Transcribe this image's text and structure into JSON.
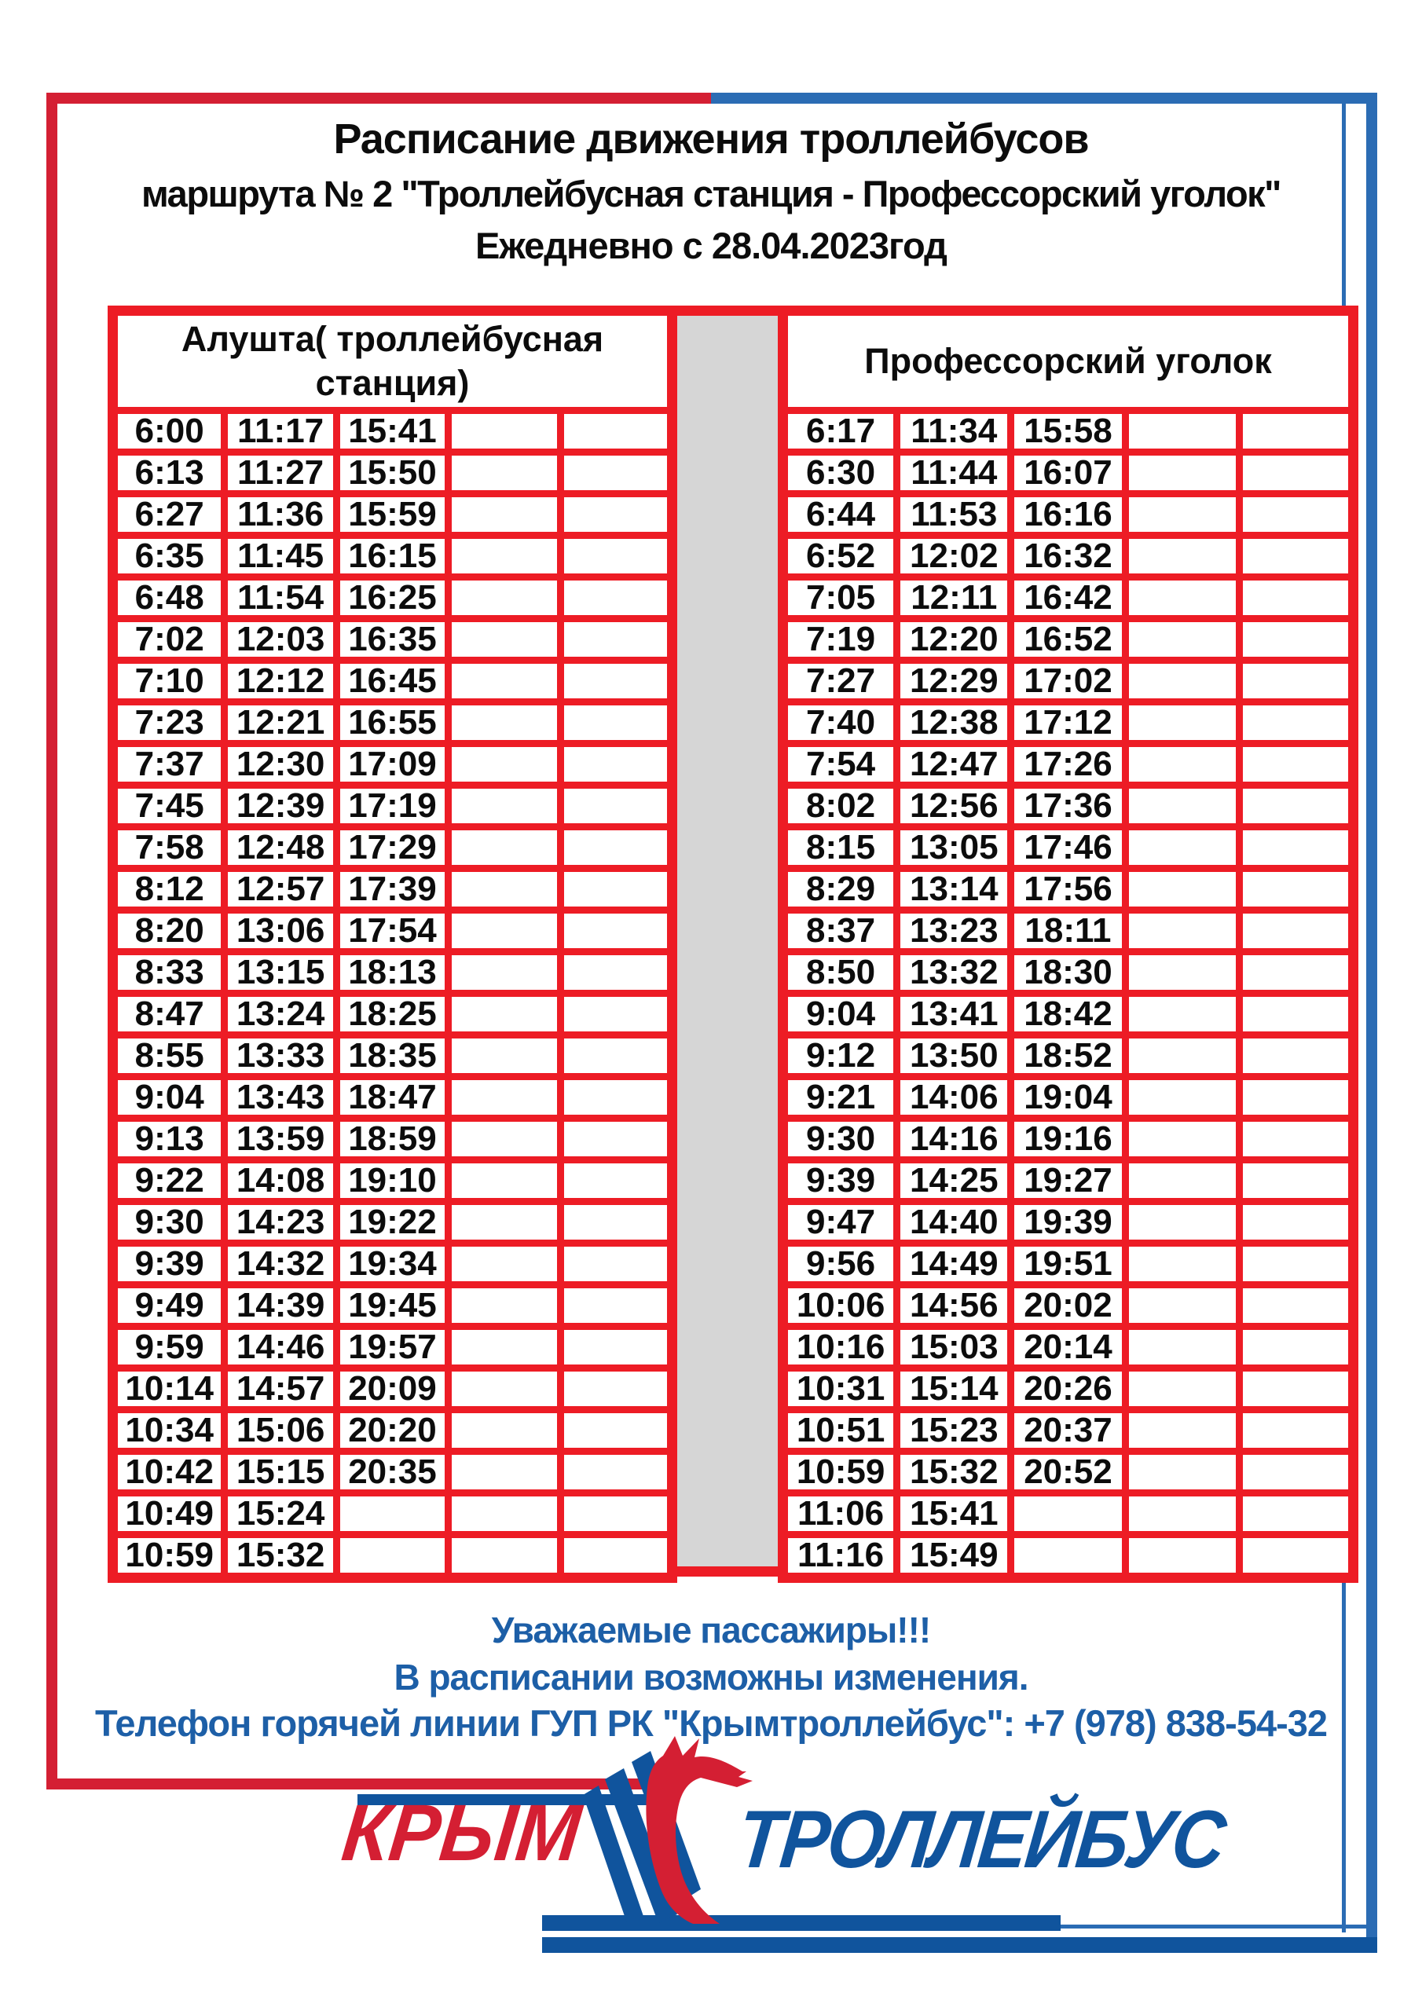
{
  "title": {
    "line1": "Расписание движения троллейбусов",
    "line2": "маршрута № 2 \"Троллейбусная станция - Профессорский уголок\"",
    "line3": "Ежедневно с 28.04.2023год"
  },
  "left_table": {
    "header_lines": [
      "Алушта( троллейбусная",
      "станция)"
    ],
    "columns": 5,
    "rows": [
      [
        "6:00",
        "11:17",
        "15:41",
        "",
        ""
      ],
      [
        "6:13",
        "11:27",
        "15:50",
        "",
        ""
      ],
      [
        "6:27",
        "11:36",
        "15:59",
        "",
        ""
      ],
      [
        "6:35",
        "11:45",
        "16:15",
        "",
        ""
      ],
      [
        "6:48",
        "11:54",
        "16:25",
        "",
        ""
      ],
      [
        "7:02",
        "12:03",
        "16:35",
        "",
        ""
      ],
      [
        "7:10",
        "12:12",
        "16:45",
        "",
        ""
      ],
      [
        "7:23",
        "12:21",
        "16:55",
        "",
        ""
      ],
      [
        "7:37",
        "12:30",
        "17:09",
        "",
        ""
      ],
      [
        "7:45",
        "12:39",
        "17:19",
        "",
        ""
      ],
      [
        "7:58",
        "12:48",
        "17:29",
        "",
        ""
      ],
      [
        "8:12",
        "12:57",
        "17:39",
        "",
        ""
      ],
      [
        "8:20",
        "13:06",
        "17:54",
        "",
        ""
      ],
      [
        "8:33",
        "13:15",
        "18:13",
        "",
        ""
      ],
      [
        "8:47",
        "13:24",
        "18:25",
        "",
        ""
      ],
      [
        "8:55",
        "13:33",
        "18:35",
        "",
        ""
      ],
      [
        "9:04",
        "13:43",
        "18:47",
        "",
        ""
      ],
      [
        "9:13",
        "13:59",
        "18:59",
        "",
        ""
      ],
      [
        "9:22",
        "14:08",
        "19:10",
        "",
        ""
      ],
      [
        "9:30",
        "14:23",
        "19:22",
        "",
        ""
      ],
      [
        "9:39",
        "14:32",
        "19:34",
        "",
        ""
      ],
      [
        "9:49",
        "14:39",
        "19:45",
        "",
        ""
      ],
      [
        "9:59",
        "14:46",
        "19:57",
        "",
        ""
      ],
      [
        "10:14",
        "14:57",
        "20:09",
        "",
        ""
      ],
      [
        "10:34",
        "15:06",
        "20:20",
        "",
        ""
      ],
      [
        "10:42",
        "15:15",
        "20:35",
        "",
        ""
      ],
      [
        "10:49",
        "15:24",
        "",
        "",
        ""
      ],
      [
        "10:59",
        "15:32",
        "",
        "",
        ""
      ]
    ]
  },
  "right_table": {
    "header_lines": [
      "Профессорский уголок"
    ],
    "columns": 5,
    "rows": [
      [
        "6:17",
        "11:34",
        "15:58",
        "",
        ""
      ],
      [
        "6:30",
        "11:44",
        "16:07",
        "",
        ""
      ],
      [
        "6:44",
        "11:53",
        "16:16",
        "",
        ""
      ],
      [
        "6:52",
        "12:02",
        "16:32",
        "",
        ""
      ],
      [
        "7:05",
        "12:11",
        "16:42",
        "",
        ""
      ],
      [
        "7:19",
        "12:20",
        "16:52",
        "",
        ""
      ],
      [
        "7:27",
        "12:29",
        "17:02",
        "",
        ""
      ],
      [
        "7:40",
        "12:38",
        "17:12",
        "",
        ""
      ],
      [
        "7:54",
        "12:47",
        "17:26",
        "",
        ""
      ],
      [
        "8:02",
        "12:56",
        "17:36",
        "",
        ""
      ],
      [
        "8:15",
        "13:05",
        "17:46",
        "",
        ""
      ],
      [
        "8:29",
        "13:14",
        "17:56",
        "",
        ""
      ],
      [
        "8:37",
        "13:23",
        "18:11",
        "",
        ""
      ],
      [
        "8:50",
        "13:32",
        "18:30",
        "",
        ""
      ],
      [
        "9:04",
        "13:41",
        "18:42",
        "",
        ""
      ],
      [
        "9:12",
        "13:50",
        "18:52",
        "",
        ""
      ],
      [
        "9:21",
        "14:06",
        "19:04",
        "",
        ""
      ],
      [
        "9:30",
        "14:16",
        "19:16",
        "",
        ""
      ],
      [
        "9:39",
        "14:25",
        "19:27",
        "",
        ""
      ],
      [
        "9:47",
        "14:40",
        "19:39",
        "",
        ""
      ],
      [
        "9:56",
        "14:49",
        "19:51",
        "",
        ""
      ],
      [
        "10:06",
        "14:56",
        "20:02",
        "",
        ""
      ],
      [
        "10:16",
        "15:03",
        "20:14",
        "",
        ""
      ],
      [
        "10:31",
        "15:14",
        "20:26",
        "",
        ""
      ],
      [
        "10:51",
        "15:23",
        "20:37",
        "",
        ""
      ],
      [
        "10:59",
        "15:32",
        "20:52",
        "",
        ""
      ],
      [
        "11:06",
        "15:41",
        "",
        "",
        ""
      ],
      [
        "11:16",
        "15:49",
        "",
        "",
        ""
      ]
    ]
  },
  "notice": {
    "line1": "Уважаемые пассажиры!!!",
    "line2": "В расписании возможны изменения.",
    "line3": "Телефон горячей линии ГУП РК \"Крымтроллейбус\": +7 (978) 838-54-32"
  },
  "logo": {
    "krym": "КРЫМ",
    "trolleybus": "ТРОЛЛЕЙБУС"
  },
  "colors": {
    "grid_red": "#ed1c25",
    "frame_red": "#d41f33",
    "frame_blue": "#2b6cb4",
    "logo_red": "#d41f33",
    "logo_blue": "#10549d",
    "footer_blue": "#1d5fa7",
    "separator_gray": "#d6d6d6",
    "text_black": "#0c0c0c"
  }
}
